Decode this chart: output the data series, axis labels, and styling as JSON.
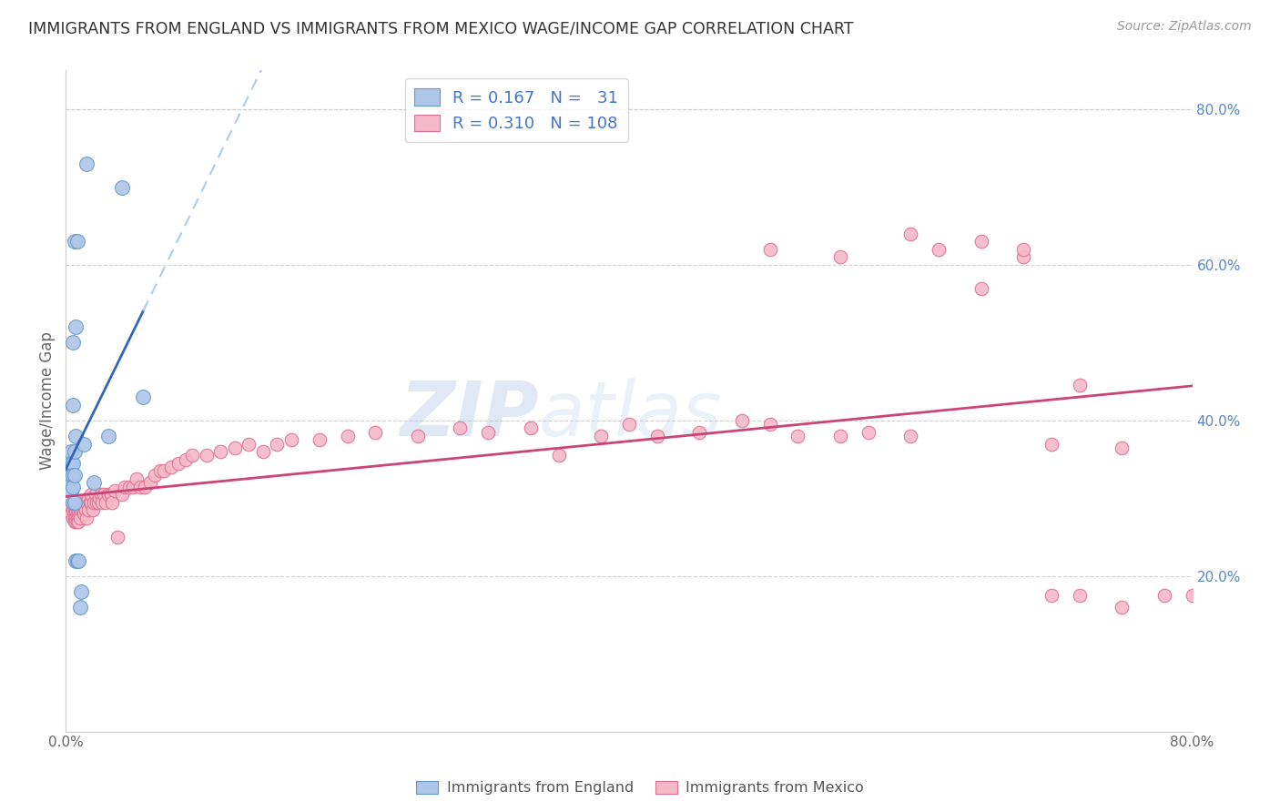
{
  "title": "IMMIGRANTS FROM ENGLAND VS IMMIGRANTS FROM MEXICO WAGE/INCOME GAP CORRELATION CHART",
  "source": "Source: ZipAtlas.com",
  "ylabel": "Wage/Income Gap",
  "xlim": [
    0.0,
    0.8
  ],
  "ylim": [
    0.0,
    0.85
  ],
  "right_yticks": [
    0.2,
    0.4,
    0.6,
    0.8
  ],
  "right_ytick_labels": [
    "20.0%",
    "40.0%",
    "60.0%",
    "80.0%"
  ],
  "england_color": "#aec6e8",
  "england_edge_color": "#6699cc",
  "mexico_color": "#f5b8c8",
  "mexico_edge_color": "#e07090",
  "england_trend_color": "#3366bb",
  "mexico_trend_color": "#cc4477",
  "watermark_zip": "ZIP",
  "watermark_atlas": "atlas",
  "legend_label_england": "Immigrants from England",
  "legend_label_mexico": "Immigrants from Mexico",
  "england_x": [
    0.002,
    0.003,
    0.003,
    0.004,
    0.004,
    0.004,
    0.004,
    0.005,
    0.005,
    0.005,
    0.005,
    0.005,
    0.005,
    0.006,
    0.006,
    0.006,
    0.006,
    0.007,
    0.007,
    0.007,
    0.008,
    0.008,
    0.009,
    0.01,
    0.011,
    0.013,
    0.015,
    0.02,
    0.03,
    0.04,
    0.055
  ],
  "england_y": [
    0.34,
    0.35,
    0.32,
    0.36,
    0.345,
    0.33,
    0.31,
    0.5,
    0.42,
    0.345,
    0.33,
    0.315,
    0.295,
    0.63,
    0.36,
    0.33,
    0.295,
    0.52,
    0.38,
    0.22,
    0.63,
    0.22,
    0.22,
    0.16,
    0.18,
    0.37,
    0.73,
    0.32,
    0.38,
    0.7,
    0.43
  ],
  "mexico_x": [
    0.003,
    0.004,
    0.005,
    0.005,
    0.005,
    0.006,
    0.006,
    0.006,
    0.007,
    0.007,
    0.007,
    0.007,
    0.008,
    0.008,
    0.008,
    0.008,
    0.009,
    0.009,
    0.009,
    0.01,
    0.01,
    0.01,
    0.011,
    0.011,
    0.012,
    0.012,
    0.013,
    0.013,
    0.014,
    0.014,
    0.015,
    0.015,
    0.016,
    0.016,
    0.017,
    0.018,
    0.018,
    0.019,
    0.02,
    0.021,
    0.022,
    0.023,
    0.024,
    0.025,
    0.026,
    0.027,
    0.028,
    0.03,
    0.032,
    0.033,
    0.035,
    0.037,
    0.04,
    0.042,
    0.045,
    0.048,
    0.05,
    0.053,
    0.056,
    0.06,
    0.063,
    0.067,
    0.07,
    0.075,
    0.08,
    0.085,
    0.09,
    0.1,
    0.11,
    0.12,
    0.13,
    0.14,
    0.15,
    0.16,
    0.18,
    0.2,
    0.22,
    0.25,
    0.28,
    0.3,
    0.33,
    0.35,
    0.38,
    0.4,
    0.42,
    0.45,
    0.48,
    0.5,
    0.52,
    0.55,
    0.57,
    0.6,
    0.62,
    0.65,
    0.68,
    0.7,
    0.72,
    0.75,
    0.78,
    0.8,
    0.5,
    0.55,
    0.6,
    0.65,
    0.68,
    0.7,
    0.72,
    0.75
  ],
  "mexico_y": [
    0.285,
    0.28,
    0.295,
    0.275,
    0.285,
    0.275,
    0.285,
    0.27,
    0.285,
    0.275,
    0.285,
    0.27,
    0.285,
    0.275,
    0.285,
    0.27,
    0.28,
    0.275,
    0.27,
    0.29,
    0.28,
    0.275,
    0.29,
    0.285,
    0.295,
    0.285,
    0.29,
    0.28,
    0.295,
    0.285,
    0.295,
    0.275,
    0.3,
    0.285,
    0.295,
    0.295,
    0.305,
    0.285,
    0.295,
    0.305,
    0.295,
    0.295,
    0.3,
    0.305,
    0.295,
    0.305,
    0.295,
    0.305,
    0.305,
    0.295,
    0.31,
    0.25,
    0.305,
    0.315,
    0.315,
    0.315,
    0.325,
    0.315,
    0.315,
    0.32,
    0.33,
    0.335,
    0.335,
    0.34,
    0.345,
    0.35,
    0.355,
    0.355,
    0.36,
    0.365,
    0.37,
    0.36,
    0.37,
    0.375,
    0.375,
    0.38,
    0.385,
    0.38,
    0.39,
    0.385,
    0.39,
    0.355,
    0.38,
    0.395,
    0.38,
    0.385,
    0.4,
    0.395,
    0.38,
    0.38,
    0.385,
    0.38,
    0.62,
    0.63,
    0.61,
    0.37,
    0.445,
    0.365,
    0.175,
    0.175,
    0.62,
    0.61,
    0.64,
    0.57,
    0.62,
    0.175,
    0.175,
    0.16
  ]
}
